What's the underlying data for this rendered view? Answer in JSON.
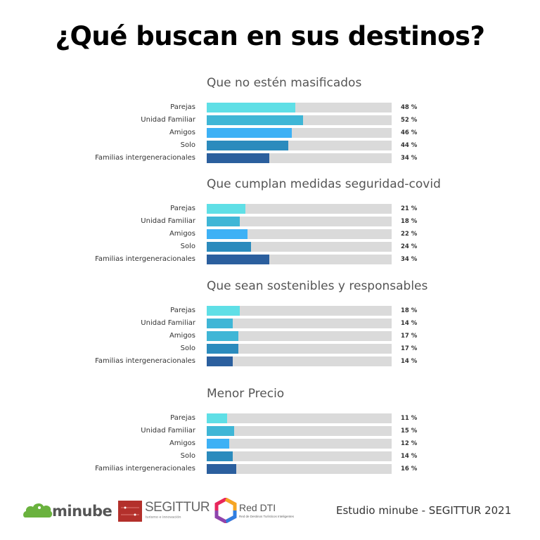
{
  "title": "¿Qué buscan en sus destinos?",
  "chart_data": [
    {
      "type": "bar",
      "orientation": "horizontal",
      "title": "Que no estén masificados",
      "categories": [
        "Parejas",
        "Unidad Familiar",
        "Amigos",
        "Solo",
        "Familias intergeneracionales"
      ],
      "values": [
        48,
        52,
        46,
        44,
        34
      ],
      "labels": [
        "48 %",
        "52 %",
        "46 %",
        "44 %",
        "34 %"
      ],
      "colors": [
        "#5fdfe6",
        "#3fb6d6",
        "#3db1f5",
        "#2b8bbd",
        "#2b5f9e"
      ],
      "xlim": [
        0,
        100
      ],
      "unit": "%"
    },
    {
      "type": "bar",
      "orientation": "horizontal",
      "title": "Que cumplan medidas seguridad-covid",
      "categories": [
        "Parejas",
        "Unidad Familiar",
        "Amigos",
        "Solo",
        "Familias intergeneracionales"
      ],
      "values": [
        21,
        18,
        22,
        24,
        34
      ],
      "labels": [
        "21 %",
        "18 %",
        "22 %",
        "24 %",
        "34 %"
      ],
      "colors": [
        "#5fdfe6",
        "#3fb6d6",
        "#3db1f5",
        "#2b8bbd",
        "#2b5f9e"
      ],
      "xlim": [
        0,
        100
      ],
      "unit": "%"
    },
    {
      "type": "bar",
      "orientation": "horizontal",
      "title": "Que sean sostenibles y responsables",
      "categories": [
        "Parejas",
        "Unidad Familiar",
        "Amigos",
        "Solo",
        "Familias intergeneracionales"
      ],
      "values": [
        18,
        14,
        17,
        17,
        14
      ],
      "labels": [
        "18 %",
        "14 %",
        "17 %",
        "17 %",
        "14 %"
      ],
      "colors": [
        "#5fdfe6",
        "#3fb6d6",
        "#3fb6d6",
        "#2b8bbd",
        "#2b5f9e"
      ],
      "xlim": [
        0,
        100
      ],
      "unit": "%"
    },
    {
      "type": "bar",
      "orientation": "horizontal",
      "title": "Menor Precio",
      "categories": [
        "Parejas",
        "Unidad Familiar",
        "Amigos",
        "Solo",
        "Familias intergeneracionales"
      ],
      "values": [
        11,
        15,
        12,
        14,
        16
      ],
      "labels": [
        "11 %",
        "15 %",
        "12 %",
        "14 %",
        "16 %"
      ],
      "colors": [
        "#5fdfe6",
        "#3fb6d6",
        "#3db1f5",
        "#2b8bbd",
        "#2b5f9e"
      ],
      "xlim": [
        0,
        100
      ],
      "unit": "%"
    }
  ],
  "track_color": "#dadada",
  "footer": {
    "minube": {
      "name": "minube",
      "color": "#6ab23e"
    },
    "segittur": {
      "name": "SEGITTUR",
      "tagline": "turismo e innovación",
      "color": "#b3302b"
    },
    "reddti": {
      "name": "Red DTI",
      "tagline": "Red de Destinos Turísticos Inteligentes"
    },
    "credit": "Estudio minube - SEGITTUR 2021"
  }
}
